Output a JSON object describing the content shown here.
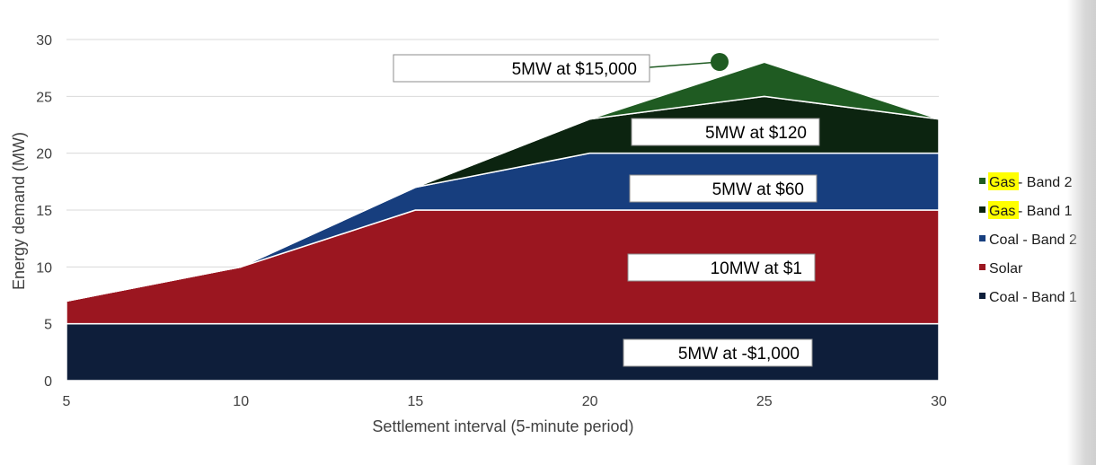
{
  "chart_data": {
    "type": "area",
    "stacked": true,
    "x": [
      5,
      10,
      15,
      20,
      25,
      30
    ],
    "xlabel": "Settlement interval (5-minute period)",
    "ylabel": "Energy demand (MW)",
    "xlim": [
      5,
      30
    ],
    "ylim": [
      0,
      30
    ],
    "xticks": [
      5,
      10,
      15,
      20,
      25,
      30
    ],
    "yticks": [
      0,
      5,
      10,
      15,
      20,
      25,
      30
    ],
    "grid": "horizontal",
    "legend_position": "right",
    "series": [
      {
        "name": "Coal - Band 1",
        "values": [
          5,
          5,
          5,
          5,
          5,
          5
        ],
        "color": "#0e1e3a"
      },
      {
        "name": "Solar",
        "values": [
          2,
          5,
          10,
          10,
          10,
          10
        ],
        "color": "#9b1620"
      },
      {
        "name": "Coal - Band 2",
        "values": [
          0,
          0,
          2,
          5,
          5,
          5
        ],
        "color": "#173e7e"
      },
      {
        "name": "Gas - Band 1",
        "values": [
          0,
          0,
          0,
          3,
          5,
          3
        ],
        "color": "#0c2410"
      },
      {
        "name": "Gas - Band 2",
        "values": [
          0,
          0,
          0,
          0,
          3,
          0
        ],
        "color": "#1f5b22"
      }
    ],
    "legend": [
      {
        "highlight": "Gas",
        "rest": " - Band 2",
        "color": "#1f5b22"
      },
      {
        "highlight": "Gas",
        "rest": " - Band 1",
        "color": "#0c2410"
      },
      {
        "highlight": "",
        "rest": "Coal - Band 2",
        "color": "#173e7e"
      },
      {
        "highlight": "",
        "rest": "Solar",
        "color": "#9b1620"
      },
      {
        "highlight": "",
        "rest": "Coal - Band 1",
        "color": "#0e1e3a"
      }
    ],
    "highlight_color": "#ffff00",
    "annotations": [
      {
        "text": "5MW at $15,000",
        "series": "Gas - Band 2"
      },
      {
        "text": "5MW at $120",
        "series": "Gas - Band 1"
      },
      {
        "text": "5MW at $60",
        "series": "Coal - Band 2"
      },
      {
        "text": "10MW at $1",
        "series": "Solar"
      },
      {
        "text": "5MW at -$1,000",
        "series": "Coal - Band 1"
      }
    ],
    "callout_marker_color": "#1f5b22"
  }
}
